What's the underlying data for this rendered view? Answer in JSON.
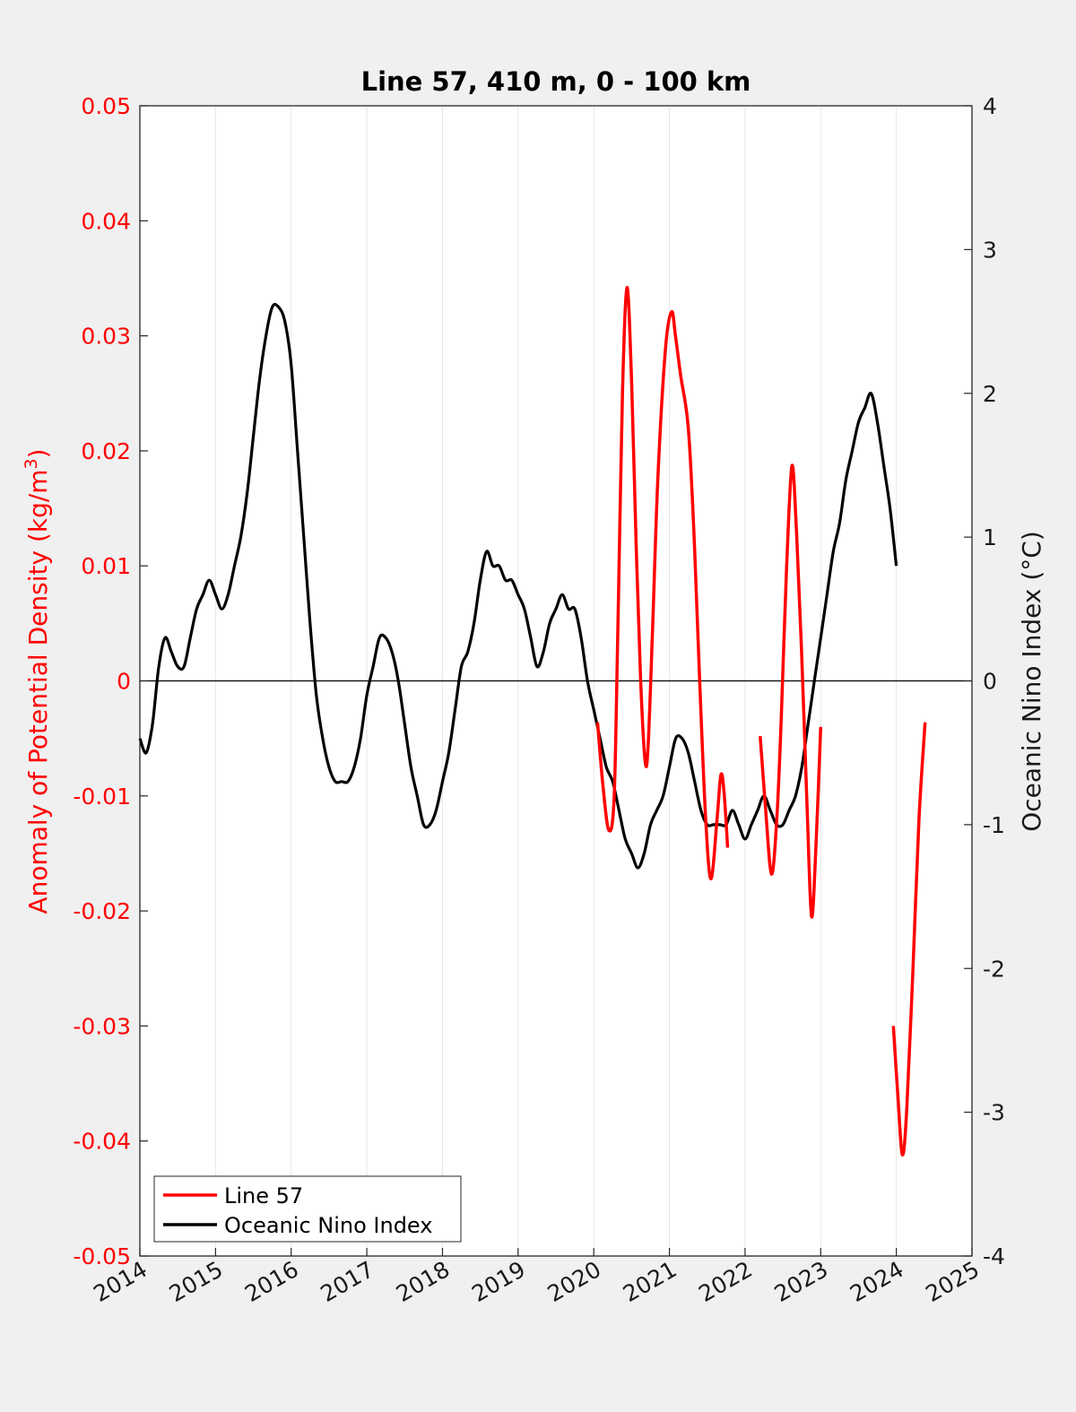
{
  "chart_data": {
    "type": "line",
    "title": "Line 57, 410 m, 0 - 100 km",
    "xlabel": "",
    "ylabel_left_text": "Anomaly of Potential Density (kg/m",
    "ylabel_left_sup": "3",
    "ylabel_left_close": ")",
    "ylabel_right": "Oceanic Nino Index (°C)",
    "xlim": [
      2014,
      2025
    ],
    "ylim_left": [
      -0.05,
      0.05
    ],
    "ylim_right": [
      -4,
      4
    ],
    "x_ticks": [
      "2014",
      "2015",
      "2016",
      "2017",
      "2018",
      "2019",
      "2020",
      "2021",
      "2022",
      "2023",
      "2024",
      "2025"
    ],
    "y_left_ticks": [
      "-0.05",
      "-0.04",
      "-0.03",
      "-0.02",
      "-0.01",
      "0",
      "0.01",
      "0.02",
      "0.03",
      "0.04",
      "0.05"
    ],
    "y_right_ticks": [
      "-4",
      "-3",
      "-2",
      "-1",
      "0",
      "1",
      "2",
      "3",
      "4"
    ],
    "grid": "vertical",
    "zero_line": true,
    "legend_position": "bottom-left",
    "colors": {
      "line57": "#ff0000",
      "oni": "#000000",
      "left_axis": "#ff0000",
      "right_axis": "#1a1a1a"
    },
    "series": [
      {
        "name": "Line 57",
        "axis": "left",
        "segments": [
          [
            [
              2020.05,
              -0.0036
            ],
            [
              2020.12,
              -0.009
            ],
            [
              2020.2,
              -0.013
            ],
            [
              2020.27,
              -0.01
            ],
            [
              2020.32,
              0.005
            ],
            [
              2020.38,
              0.025
            ],
            [
              2020.44,
              0.0342
            ],
            [
              2020.5,
              0.026
            ],
            [
              2020.56,
              0.012
            ],
            [
              2020.62,
              0.0
            ],
            [
              2020.68,
              -0.007
            ],
            [
              2020.72,
              -0.0055
            ],
            [
              2020.78,
              0.005
            ],
            [
              2020.85,
              0.018
            ],
            [
              2020.95,
              0.029
            ],
            [
              2021.03,
              0.0321
            ],
            [
              2021.08,
              0.03
            ],
            [
              2021.15,
              0.0265
            ],
            [
              2021.25,
              0.022
            ],
            [
              2021.33,
              0.012
            ],
            [
              2021.4,
              0.0
            ],
            [
              2021.48,
              -0.012
            ],
            [
              2021.55,
              -0.0172
            ],
            [
              2021.63,
              -0.012
            ],
            [
              2021.68,
              -0.0082
            ],
            [
              2021.72,
              -0.0095
            ],
            [
              2021.77,
              -0.0145
            ]
          ],
          [
            [
              2022.2,
              -0.0048
            ],
            [
              2022.27,
              -0.011
            ],
            [
              2022.35,
              -0.0168
            ],
            [
              2022.42,
              -0.012
            ],
            [
              2022.48,
              -0.003
            ],
            [
              2022.55,
              0.01
            ],
            [
              2022.62,
              0.0187
            ],
            [
              2022.68,
              0.013
            ],
            [
              2022.75,
              0.002
            ],
            [
              2022.82,
              -0.011
            ],
            [
              2022.88,
              -0.0205
            ],
            [
              2022.94,
              -0.014
            ],
            [
              2023.0,
              -0.004
            ]
          ],
          [
            [
              2023.96,
              -0.03
            ],
            [
              2024.02,
              -0.036
            ],
            [
              2024.08,
              -0.0412
            ],
            [
              2024.14,
              -0.037
            ],
            [
              2024.22,
              -0.025
            ],
            [
              2024.3,
              -0.012
            ],
            [
              2024.38,
              -0.0036
            ]
          ]
        ]
      },
      {
        "name": "Oceanic Nino Index",
        "axis": "right",
        "values": [
          -0.4,
          -0.5,
          -0.3,
          0.1,
          0.3,
          0.2,
          0.1,
          0.1,
          0.3,
          0.5,
          0.6,
          0.7,
          0.6,
          0.5,
          0.6,
          0.8,
          1.0,
          1.3,
          1.7,
          2.1,
          2.4,
          2.6,
          2.6,
          2.5,
          2.2,
          1.6,
          1.0,
          0.4,
          -0.1,
          -0.4,
          -0.6,
          -0.7,
          -0.7,
          -0.7,
          -0.6,
          -0.4,
          -0.1,
          0.1,
          0.3,
          0.3,
          0.2,
          0.0,
          -0.3,
          -0.6,
          -0.8,
          -1.0,
          -1.0,
          -0.9,
          -0.7,
          -0.5,
          -0.2,
          0.1,
          0.2,
          0.4,
          0.7,
          0.9,
          0.8,
          0.8,
          0.7,
          0.7,
          0.6,
          0.5,
          0.3,
          0.1,
          0.2,
          0.4,
          0.5,
          0.6,
          0.5,
          0.5,
          0.3,
          0.0,
          -0.2,
          -0.4,
          -0.6,
          -0.7,
          -0.9,
          -1.1,
          -1.2,
          -1.3,
          -1.2,
          -1.0,
          -0.9,
          -0.8,
          -0.6,
          -0.4,
          -0.4,
          -0.5,
          -0.7,
          -0.9,
          -1.0,
          -1.0,
          -1.0,
          -1.0,
          -0.9,
          -1.0,
          -1.1,
          -1.0,
          -0.9,
          -0.8,
          -0.9,
          -1.0,
          -1.0,
          -0.9,
          -0.8,
          -0.6,
          -0.3,
          0.0,
          0.3,
          0.6,
          0.9,
          1.1,
          1.4,
          1.6,
          1.8,
          1.9,
          2.0,
          1.8,
          1.5,
          1.2,
          0.8
        ],
        "x_start": 2014.0,
        "x_step_label": "monthly"
      }
    ],
    "legend": [
      "Line 57",
      "Oceanic Nino Index"
    ]
  }
}
